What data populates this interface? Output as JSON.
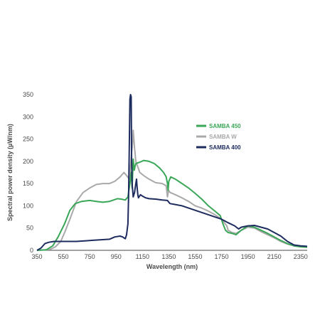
{
  "chart_data": {
    "type": "line",
    "xlabel": "Wavelength (nm)",
    "ylabel": "Spectral power density (µW/nm)",
    "xlim": [
      350,
      2400
    ],
    "ylim": [
      0,
      350
    ],
    "x_ticks": [
      350,
      550,
      750,
      950,
      1150,
      1350,
      1550,
      1750,
      1950,
      2150,
      2350
    ],
    "y_ticks": [
      0,
      50,
      100,
      150,
      200,
      250,
      300,
      350
    ],
    "grid": false,
    "legend_position": "top-right",
    "series": [
      {
        "name": "SAMBA 450",
        "color": "#3aa657",
        "points": [
          [
            350,
            0
          ],
          [
            420,
            1
          ],
          [
            470,
            10
          ],
          [
            510,
            30
          ],
          [
            560,
            60
          ],
          [
            600,
            90
          ],
          [
            640,
            105
          ],
          [
            690,
            110
          ],
          [
            750,
            112
          ],
          [
            800,
            110
          ],
          [
            850,
            108
          ],
          [
            900,
            110
          ],
          [
            930,
            113
          ],
          [
            960,
            116
          ],
          [
            990,
            115
          ],
          [
            1020,
            113
          ],
          [
            1040,
            120
          ],
          [
            1055,
            150
          ],
          [
            1065,
            175
          ],
          [
            1072,
            140
          ],
          [
            1080,
            205
          ],
          [
            1088,
            180
          ],
          [
            1095,
            190
          ],
          [
            1100,
            195
          ],
          [
            1130,
            198
          ],
          [
            1160,
            202
          ],
          [
            1200,
            200
          ],
          [
            1240,
            195
          ],
          [
            1280,
            185
          ],
          [
            1310,
            175
          ],
          [
            1330,
            165
          ],
          [
            1340,
            150
          ],
          [
            1345,
            135
          ],
          [
            1350,
            155
          ],
          [
            1365,
            165
          ],
          [
            1400,
            160
          ],
          [
            1450,
            150
          ],
          [
            1500,
            140
          ],
          [
            1550,
            128
          ],
          [
            1600,
            115
          ],
          [
            1650,
            100
          ],
          [
            1700,
            88
          ],
          [
            1740,
            78
          ],
          [
            1760,
            60
          ],
          [
            1780,
            45
          ],
          [
            1800,
            40
          ],
          [
            1830,
            38
          ],
          [
            1860,
            35
          ],
          [
            1900,
            45
          ],
          [
            1950,
            55
          ],
          [
            2000,
            52
          ],
          [
            2050,
            45
          ],
          [
            2100,
            38
          ],
          [
            2150,
            30
          ],
          [
            2200,
            22
          ],
          [
            2250,
            15
          ],
          [
            2300,
            10
          ],
          [
            2350,
            8
          ],
          [
            2400,
            7
          ]
        ]
      },
      {
        "name": "SAMBA W",
        "color": "#a9a9a9",
        "points": [
          [
            350,
            0
          ],
          [
            450,
            2
          ],
          [
            490,
            8
          ],
          [
            530,
            20
          ],
          [
            560,
            40
          ],
          [
            600,
            70
          ],
          [
            650,
            110
          ],
          [
            700,
            130
          ],
          [
            750,
            140
          ],
          [
            800,
            148
          ],
          [
            850,
            150
          ],
          [
            900,
            150
          ],
          [
            940,
            155
          ],
          [
            980,
            165
          ],
          [
            1010,
            175
          ],
          [
            1030,
            168
          ],
          [
            1050,
            160
          ],
          [
            1060,
            190
          ],
          [
            1068,
            220
          ],
          [
            1075,
            240
          ],
          [
            1080,
            270
          ],
          [
            1090,
            230
          ],
          [
            1100,
            200
          ],
          [
            1130,
            175
          ],
          [
            1160,
            168
          ],
          [
            1200,
            160
          ],
          [
            1250,
            152
          ],
          [
            1300,
            150
          ],
          [
            1330,
            145
          ],
          [
            1340,
            120
          ],
          [
            1348,
            135
          ],
          [
            1360,
            130
          ],
          [
            1400,
            125
          ],
          [
            1450,
            118
          ],
          [
            1500,
            110
          ],
          [
            1550,
            100
          ],
          [
            1600,
            95
          ],
          [
            1650,
            88
          ],
          [
            1700,
            80
          ],
          [
            1750,
            70
          ],
          [
            1790,
            55
          ],
          [
            1800,
            45
          ],
          [
            1830,
            40
          ],
          [
            1860,
            38
          ],
          [
            1900,
            45
          ],
          [
            1950,
            52
          ],
          [
            2000,
            50
          ],
          [
            2050,
            42
          ],
          [
            2100,
            35
          ],
          [
            2150,
            28
          ],
          [
            2200,
            20
          ],
          [
            2250,
            14
          ],
          [
            2300,
            10
          ],
          [
            2350,
            8
          ],
          [
            2400,
            7
          ]
        ]
      },
      {
        "name": "SAMBA 400",
        "color": "#1d2b5e",
        "points": [
          [
            350,
            0
          ],
          [
            380,
            5
          ],
          [
            410,
            15
          ],
          [
            440,
            18
          ],
          [
            480,
            20
          ],
          [
            550,
            20
          ],
          [
            650,
            20
          ],
          [
            750,
            22
          ],
          [
            850,
            24
          ],
          [
            900,
            25
          ],
          [
            940,
            30
          ],
          [
            980,
            32
          ],
          [
            1000,
            30
          ],
          [
            1010,
            28
          ],
          [
            1020,
            26
          ],
          [
            1030,
            35
          ],
          [
            1040,
            60
          ],
          [
            1045,
            120
          ],
          [
            1050,
            230
          ],
          [
            1055,
            340
          ],
          [
            1060,
            350
          ],
          [
            1065,
            345
          ],
          [
            1068,
            200
          ],
          [
            1072,
            150
          ],
          [
            1080,
            120
          ],
          [
            1090,
            130
          ],
          [
            1100,
            150
          ],
          [
            1105,
            160
          ],
          [
            1110,
            140
          ],
          [
            1115,
            125
          ],
          [
            1120,
            118
          ],
          [
            1135,
            125
          ],
          [
            1150,
            122
          ],
          [
            1175,
            118
          ],
          [
            1200,
            116
          ],
          [
            1250,
            115
          ],
          [
            1300,
            113
          ],
          [
            1340,
            112
          ],
          [
            1350,
            108
          ],
          [
            1360,
            105
          ],
          [
            1400,
            103
          ],
          [
            1450,
            100
          ],
          [
            1500,
            95
          ],
          [
            1550,
            90
          ],
          [
            1600,
            85
          ],
          [
            1650,
            80
          ],
          [
            1700,
            75
          ],
          [
            1750,
            70
          ],
          [
            1800,
            62
          ],
          [
            1850,
            55
          ],
          [
            1880,
            48
          ],
          [
            1900,
            52
          ],
          [
            1950,
            55
          ],
          [
            2000,
            56
          ],
          [
            2050,
            52
          ],
          [
            2100,
            48
          ],
          [
            2150,
            40
          ],
          [
            2200,
            32
          ],
          [
            2250,
            20
          ],
          [
            2300,
            12
          ],
          [
            2350,
            10
          ],
          [
            2400,
            9
          ]
        ]
      }
    ]
  }
}
